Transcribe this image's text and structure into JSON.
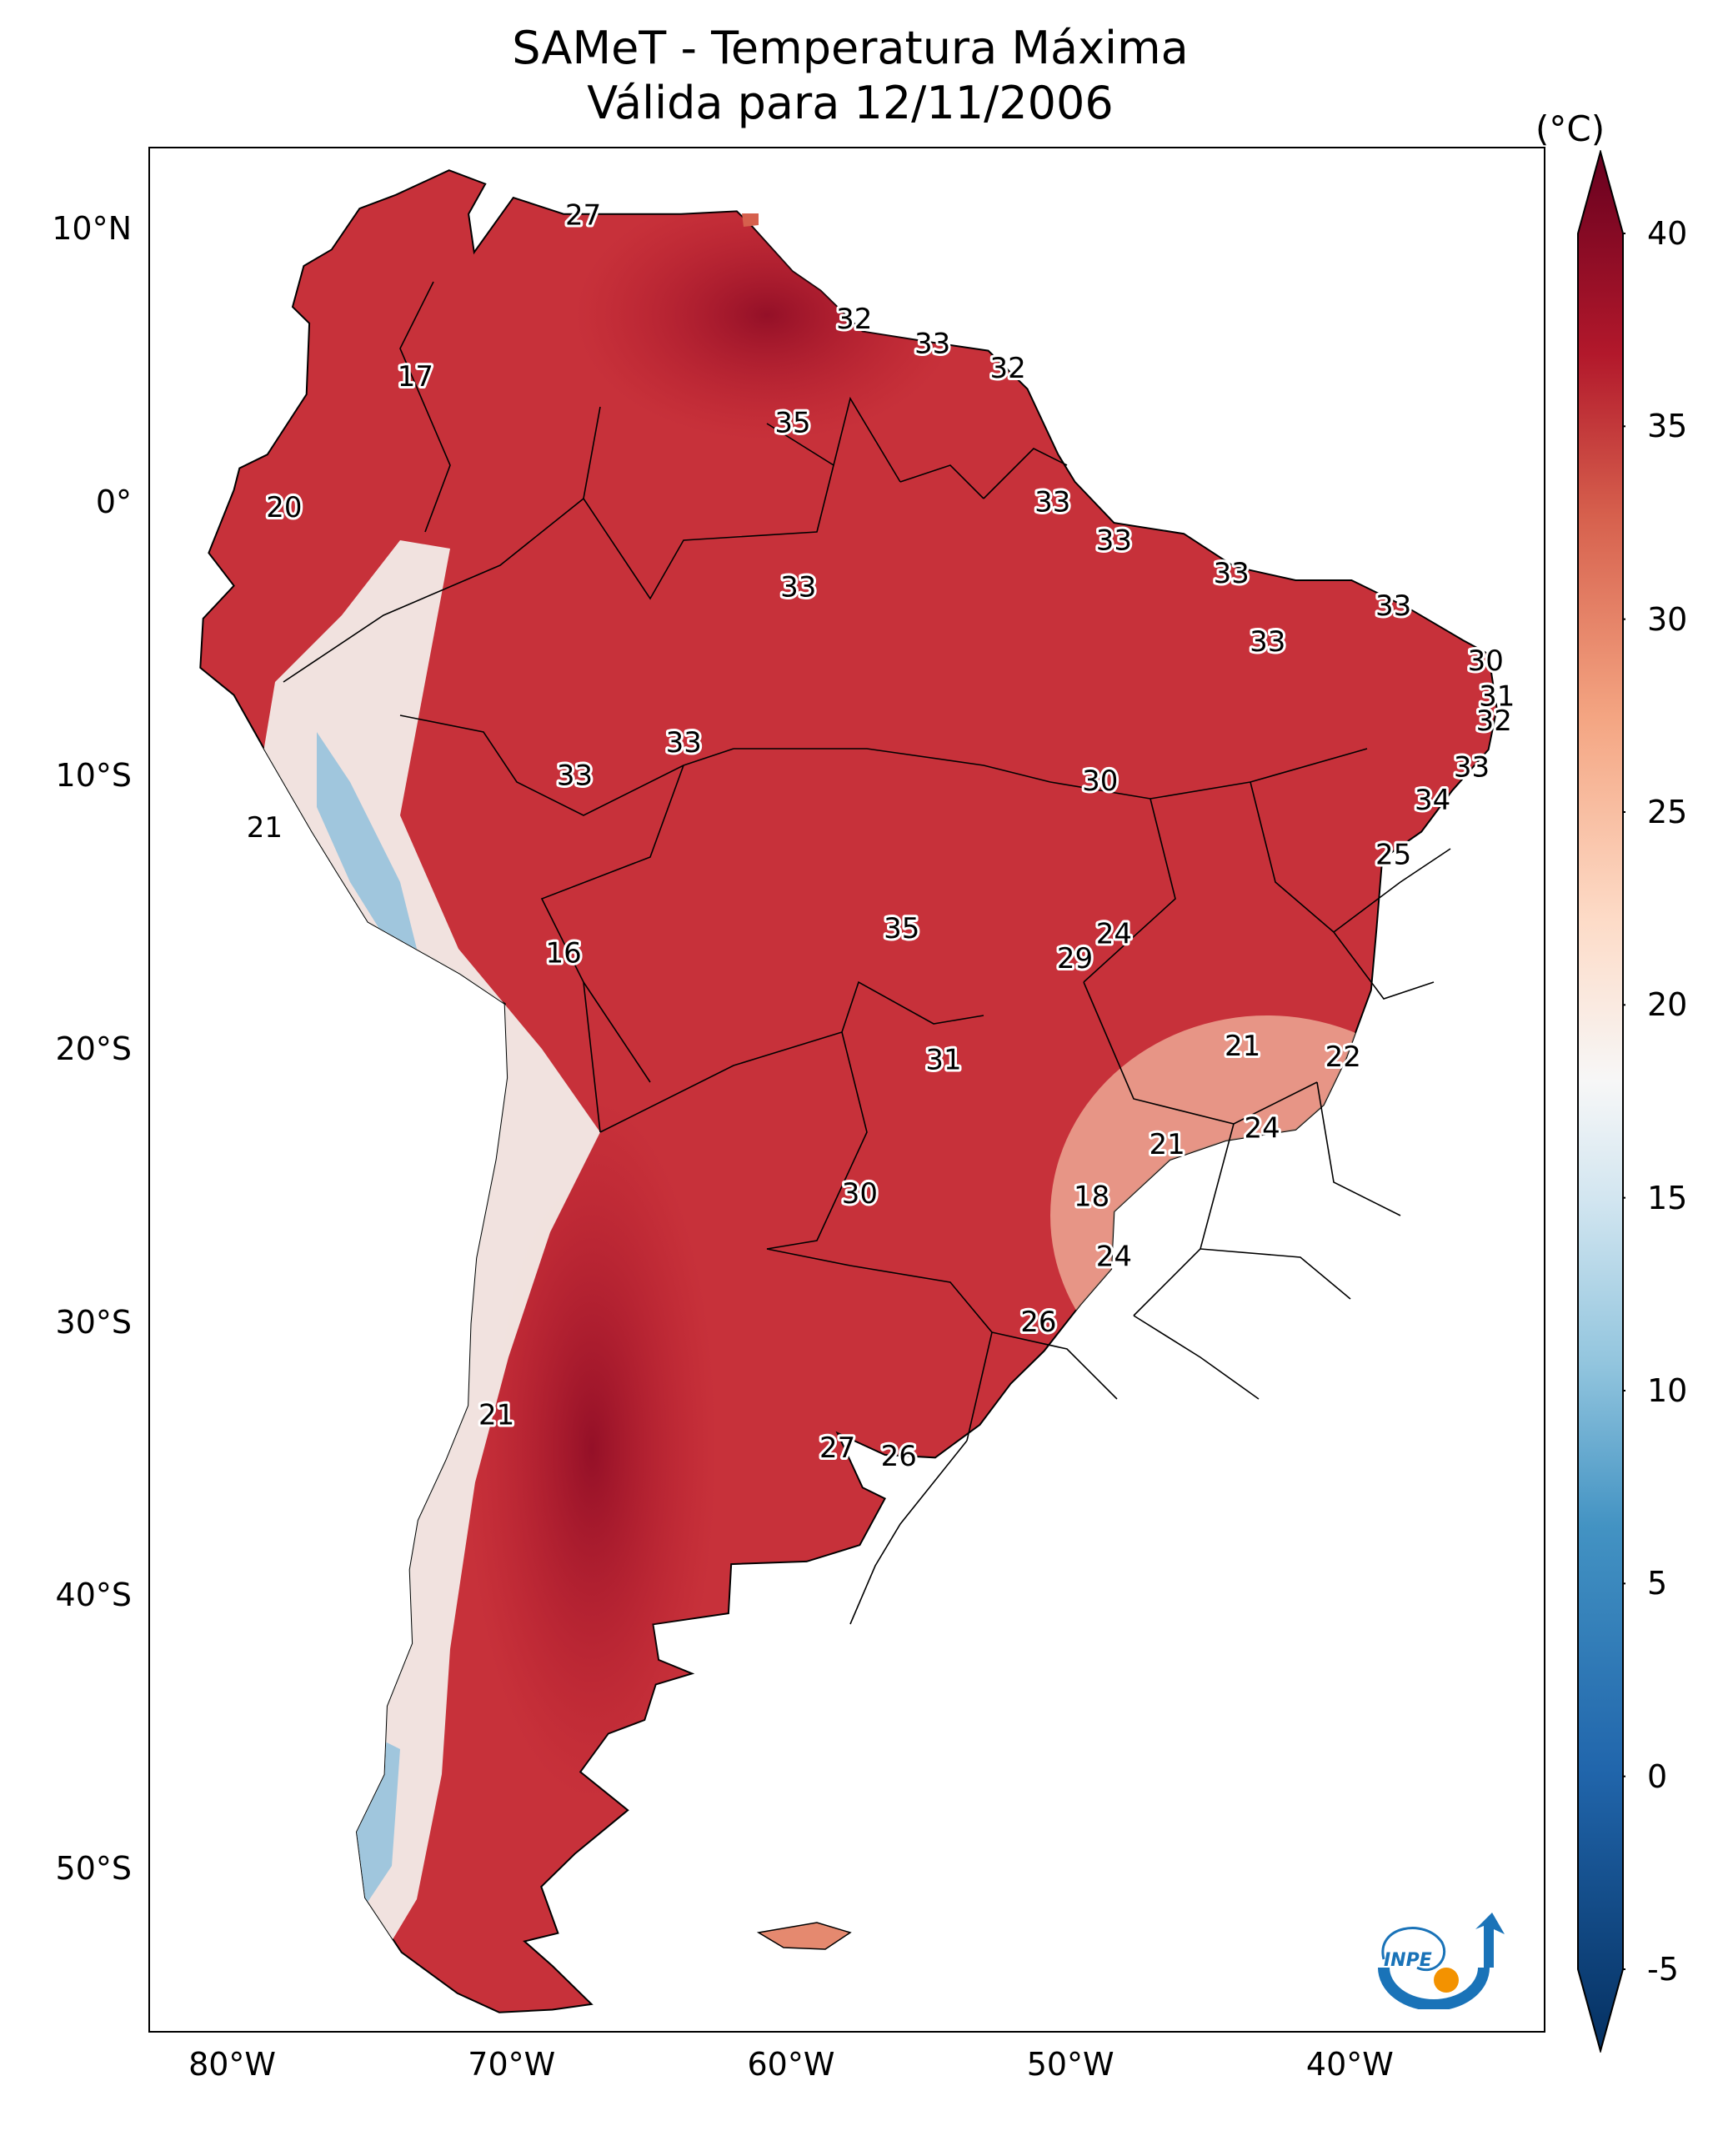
{
  "title": {
    "line1": "SAMeT - Temperatura Máxima",
    "line2": "Válida para 12/11/2006"
  },
  "map": {
    "lat_labels": [
      "10°N",
      "0°",
      "10°S",
      "20°S",
      "30°S",
      "40°S",
      "50°S"
    ],
    "lat_values": [
      10,
      0,
      -10,
      -20,
      -30,
      -40,
      -50
    ],
    "lon_labels": [
      "80°W",
      "70°W",
      "60°W",
      "50°W",
      "40°W"
    ],
    "lon_values": [
      -80,
      -70,
      -60,
      -50,
      -40
    ],
    "lon_range": [
      -83,
      -33
    ],
    "lat_range": [
      -56,
      13
    ],
    "station_values": [
      {
        "lon": -67.5,
        "lat": 10.5,
        "value": "27"
      },
      {
        "lon": -57.8,
        "lat": 6.7,
        "value": "32"
      },
      {
        "lon": -55.0,
        "lat": 5.8,
        "value": "33"
      },
      {
        "lon": -52.3,
        "lat": 4.9,
        "value": "32"
      },
      {
        "lon": -60.0,
        "lat": 2.9,
        "value": "35"
      },
      {
        "lon": -73.5,
        "lat": 4.6,
        "value": "17"
      },
      {
        "lon": -78.2,
        "lat": -0.2,
        "value": "20"
      },
      {
        "lon": -50.7,
        "lat": 0.0,
        "value": "33"
      },
      {
        "lon": -48.5,
        "lat": -1.4,
        "value": "33"
      },
      {
        "lon": -44.3,
        "lat": -2.6,
        "value": "33"
      },
      {
        "lon": -59.8,
        "lat": -3.1,
        "value": "33"
      },
      {
        "lon": -38.5,
        "lat": -3.8,
        "value": "33"
      },
      {
        "lon": -43.0,
        "lat": -5.1,
        "value": "33"
      },
      {
        "lon": -35.2,
        "lat": -5.8,
        "value": "30"
      },
      {
        "lon": -34.8,
        "lat": -7.1,
        "value": "31"
      },
      {
        "lon": -34.9,
        "lat": -8.0,
        "value": "32"
      },
      {
        "lon": -63.9,
        "lat": -8.8,
        "value": "33"
      },
      {
        "lon": -67.8,
        "lat": -10.0,
        "value": "33"
      },
      {
        "lon": -49.0,
        "lat": -10.2,
        "value": "30"
      },
      {
        "lon": -35.7,
        "lat": -9.7,
        "value": "33"
      },
      {
        "lon": -37.1,
        "lat": -10.9,
        "value": "34"
      },
      {
        "lon": -78.9,
        "lat": -11.9,
        "value": "21"
      },
      {
        "lon": -38.5,
        "lat": -12.9,
        "value": "25"
      },
      {
        "lon": -56.1,
        "lat": -15.6,
        "value": "35"
      },
      {
        "lon": -48.5,
        "lat": -15.8,
        "value": "24"
      },
      {
        "lon": -49.9,
        "lat": -16.7,
        "value": "29"
      },
      {
        "lon": -68.2,
        "lat": -16.5,
        "value": "16"
      },
      {
        "lon": -43.9,
        "lat": -19.9,
        "value": "21"
      },
      {
        "lon": -40.3,
        "lat": -20.3,
        "value": "22"
      },
      {
        "lon": -54.6,
        "lat": -20.4,
        "value": "31"
      },
      {
        "lon": -43.2,
        "lat": -22.9,
        "value": "24"
      },
      {
        "lon": -46.6,
        "lat": -23.5,
        "value": "21"
      },
      {
        "lon": -57.6,
        "lat": -25.3,
        "value": "30"
      },
      {
        "lon": -49.3,
        "lat": -25.4,
        "value": "18"
      },
      {
        "lon": -48.5,
        "lat": -27.6,
        "value": "24"
      },
      {
        "lon": -51.2,
        "lat": -30.0,
        "value": "26"
      },
      {
        "lon": -70.6,
        "lat": -33.4,
        "value": "21"
      },
      {
        "lon": -58.4,
        "lat": -34.6,
        "value": "27"
      },
      {
        "lon": -56.2,
        "lat": -34.9,
        "value": "26"
      }
    ]
  },
  "colorbar": {
    "unit": "(°C)",
    "min": -7,
    "max": 40,
    "tick_labels": [
      "40",
      "35",
      "30",
      "25",
      "20",
      "15",
      "10",
      "5",
      "0",
      "-5"
    ],
    "tick_values": [
      40,
      35,
      30,
      25,
      20,
      15,
      10,
      5,
      0,
      -5
    ],
    "stops": [
      {
        "value": -7,
        "color": "#053061"
      },
      {
        "value": 0,
        "color": "#2166ac"
      },
      {
        "value": 6,
        "color": "#4393c3"
      },
      {
        "value": 10,
        "color": "#92c5de"
      },
      {
        "value": 14,
        "color": "#d1e5f0"
      },
      {
        "value": 17,
        "color": "#f7f7f7"
      },
      {
        "value": 21,
        "color": "#fddbc7"
      },
      {
        "value": 26,
        "color": "#f4a582"
      },
      {
        "value": 31,
        "color": "#d6604d"
      },
      {
        "value": 35,
        "color": "#b2182b"
      },
      {
        "value": 40,
        "color": "#67001f"
      }
    ]
  },
  "logo": {
    "text": "INPE",
    "colors": {
      "ring": "#1a73b8",
      "dot": "#f39200"
    }
  }
}
